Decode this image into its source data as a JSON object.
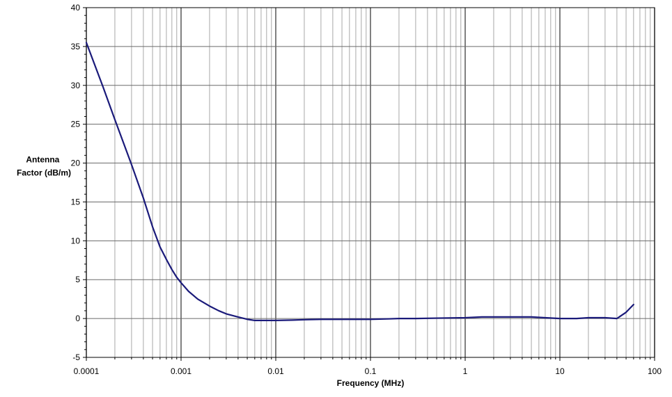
{
  "chart_data": {
    "type": "line",
    "title": "",
    "xlabel": "Frequency (MHz)",
    "ylabel_lines": [
      "Antenna",
      "Factor (dB/m)"
    ],
    "x_scale": "log",
    "xlim": [
      0.0001,
      100
    ],
    "ylim": [
      -5,
      40
    ],
    "x_ticks": [
      0.0001,
      0.001,
      0.01,
      0.1,
      1,
      10,
      100
    ],
    "x_tick_labels": [
      "0.0001",
      "0.001",
      "0.01",
      "0.1",
      "1",
      "10",
      "100"
    ],
    "y_ticks": [
      -5,
      0,
      5,
      10,
      15,
      20,
      25,
      30,
      35,
      40
    ],
    "y_tick_labels": [
      "-5",
      "0",
      "5",
      "10",
      "15",
      "20",
      "25",
      "30",
      "35",
      "40"
    ],
    "grid": true,
    "legend": "none",
    "series": [
      {
        "color": "#1a1a7a",
        "x": [
          0.0001,
          0.00015,
          0.0002,
          0.0003,
          0.0004,
          0.0005,
          0.0006,
          0.0007,
          0.0008,
          0.0009,
          0.001,
          0.0012,
          0.0015,
          0.002,
          0.0025,
          0.003,
          0.004,
          0.005,
          0.006,
          0.008,
          0.01,
          0.015,
          0.02,
          0.03,
          0.05,
          0.07,
          0.1,
          0.15,
          0.2,
          0.3,
          0.5,
          1,
          1.5,
          2,
          3,
          5,
          7,
          10,
          15,
          20,
          30,
          40,
          50,
          60
        ],
        "y": [
          35.5,
          29.8,
          25.6,
          19.8,
          15.5,
          11.8,
          9.2,
          7.6,
          6.3,
          5.3,
          4.6,
          3.5,
          2.5,
          1.6,
          1.0,
          0.6,
          0.2,
          -0.1,
          -0.25,
          -0.25,
          -0.25,
          -0.2,
          -0.15,
          -0.1,
          -0.1,
          -0.1,
          -0.1,
          -0.05,
          0.0,
          0.0,
          0.05,
          0.1,
          0.2,
          0.2,
          0.2,
          0.2,
          0.1,
          0.0,
          0.0,
          0.1,
          0.1,
          0.0,
          0.8,
          1.8
        ]
      }
    ]
  }
}
